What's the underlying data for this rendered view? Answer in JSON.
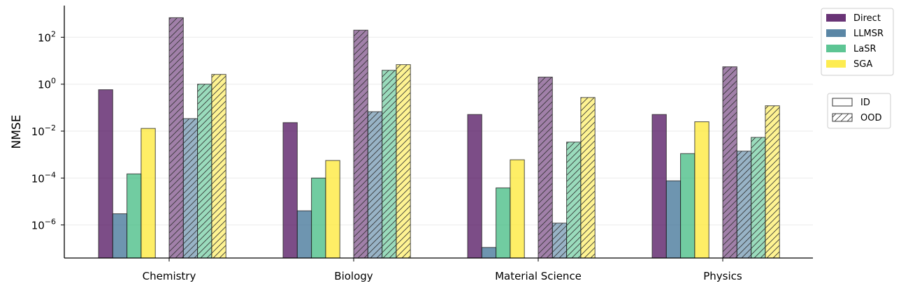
{
  "chart_data": {
    "type": "bar",
    "title": "",
    "xlabel": "",
    "ylabel": "NMSE",
    "yscale": "log",
    "ylim": [
      3.8e-08,
      1900
    ],
    "yticks": [
      {
        "value": 100.0,
        "base": "10",
        "exp": "2"
      },
      {
        "value": 1.0,
        "base": "10",
        "exp": "0"
      },
      {
        "value": 0.01,
        "base": "10",
        "exp": "−2"
      },
      {
        "value": 0.0001,
        "base": "10",
        "exp": "−4"
      },
      {
        "value": 1e-06,
        "base": "10",
        "exp": "−6"
      }
    ],
    "grid": true,
    "categories": [
      "Chemistry",
      "Biology",
      "Material Science",
      "Physics"
    ],
    "series": [
      {
        "name": "Direct",
        "color": "#440154",
        "ID": [
          0.58,
          0.023,
          0.051,
          0.051
        ],
        "OOD": [
          680,
          200,
          2.0,
          5.5
        ]
      },
      {
        "name": "LLMSR",
        "color": "#31688e",
        "ID": [
          3e-06,
          4e-06,
          1.1e-07,
          7.6e-05
        ],
        "OOD": [
          0.034,
          0.067,
          1.2e-06,
          0.0014
        ]
      },
      {
        "name": "LaSR",
        "color": "#35b779",
        "ID": [
          0.00015,
          0.0001,
          3.8e-05,
          0.0011
        ],
        "OOD": [
          1.0,
          3.9,
          0.0034,
          0.0054
        ]
      },
      {
        "name": "SGA",
        "color": "#fde725",
        "ID": [
          0.013,
          0.00056,
          0.0006,
          0.025
        ],
        "OOD": [
          2.6,
          6.8,
          0.27,
          0.12
        ]
      }
    ],
    "split_legend": [
      {
        "label": "ID",
        "hatch": false
      },
      {
        "label": "OOD",
        "hatch": true
      }
    ],
    "legend_placement": "outside-right"
  }
}
